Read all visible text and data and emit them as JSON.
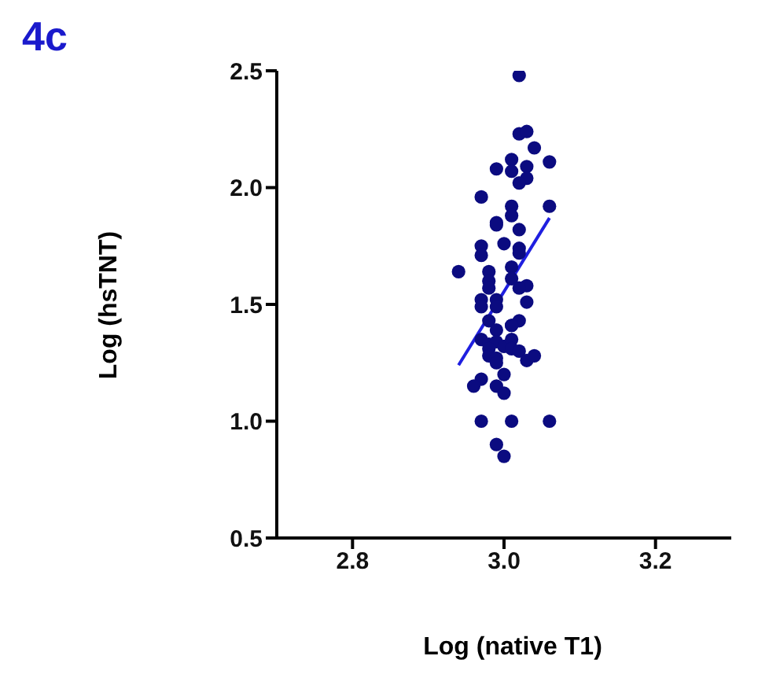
{
  "chart_data": {
    "type": "scatter",
    "title": "4c",
    "xlabel": "Log (native T1)",
    "ylabel": "Log (hsTNT)",
    "xlim": [
      2.7,
      3.3
    ],
    "xticks": [
      2.8,
      {
        "value": 3,
        "label": "3.0"
      },
      3.2
    ],
    "ylim": [
      0.5,
      2.5
    ],
    "yticks": [
      0.5,
      {
        "value": 1,
        "label": "1.0"
      },
      1.5,
      {
        "value": 2,
        "label": "2.0"
      },
      2.5
    ],
    "series": [
      {
        "marker": "circle",
        "color": "#0b0b80",
        "x": [
          3.02,
          3.02,
          3.03,
          3.04,
          3.06,
          3.01,
          2.99,
          3.01,
          3.03,
          3.03,
          3.02,
          2.97,
          3.01,
          3.01,
          3.06,
          2.99,
          2.99,
          3.02,
          2.97,
          2.97,
          3.0,
          3.02,
          3.02,
          2.94,
          2.98,
          2.98,
          3.01,
          3.01,
          3.03,
          3.02,
          2.98,
          2.97,
          2.97,
          2.99,
          2.99,
          3.03,
          2.98,
          3.02,
          3.01,
          2.99,
          3.01,
          2.97,
          2.98,
          2.99,
          2.98,
          3.0,
          2.98,
          2.99,
          3.01,
          3.01,
          3.02,
          3.03,
          3.04,
          2.99,
          3.0,
          2.97,
          2.96,
          2.99,
          3.0,
          2.97,
          3.01,
          3.06,
          2.99,
          3.0
        ],
        "values": [
          2.48,
          2.23,
          2.24,
          2.17,
          2.11,
          2.12,
          2.08,
          2.07,
          2.09,
          2.04,
          2.02,
          1.96,
          1.92,
          1.88,
          1.92,
          1.85,
          1.84,
          1.82,
          1.75,
          1.71,
          1.76,
          1.74,
          1.72,
          1.64,
          1.64,
          1.6,
          1.66,
          1.61,
          1.58,
          1.57,
          1.57,
          1.52,
          1.49,
          1.52,
          1.49,
          1.51,
          1.43,
          1.43,
          1.41,
          1.39,
          1.41,
          1.35,
          1.33,
          1.34,
          1.31,
          1.32,
          1.28,
          1.27,
          1.35,
          1.31,
          1.3,
          1.26,
          1.28,
          1.25,
          1.2,
          1.18,
          1.15,
          1.15,
          1.12,
          1.0,
          1.0,
          1.0,
          0.9,
          0.85
        ]
      },
      {
        "type": "line",
        "marker": "none",
        "color": "#1f1fe0",
        "x": [
          2.94,
          3.06
        ],
        "values": [
          1.24,
          1.87
        ]
      }
    ]
  }
}
